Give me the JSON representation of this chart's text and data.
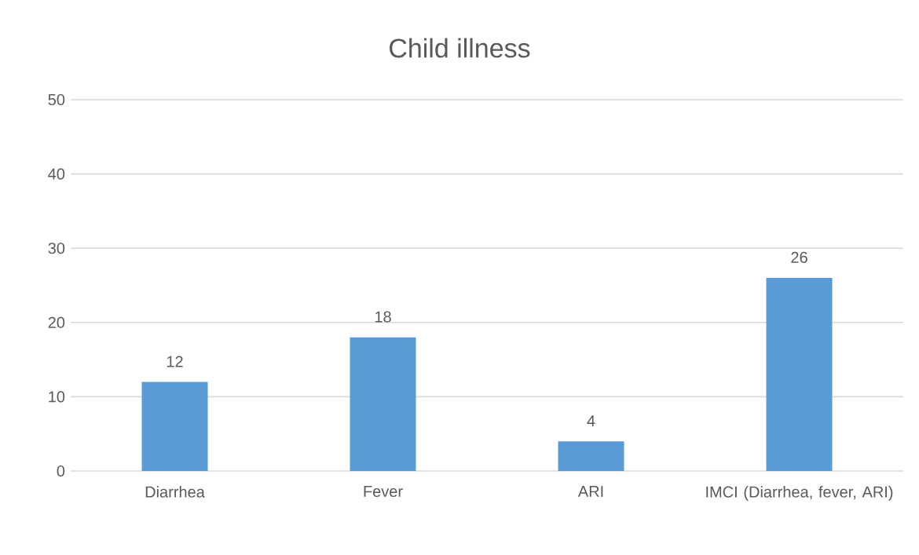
{
  "chart_data": {
    "type": "bar",
    "title": "Child illness",
    "categories": [
      "Diarrhea",
      "Fever",
      "ARI",
      "IMCI (Diarrhea, fever, ARI)"
    ],
    "values": [
      12,
      18,
      4,
      26
    ],
    "color": "#5b9bd5",
    "ylim": [
      0,
      50
    ],
    "yticks": [
      0,
      10,
      20,
      30,
      40,
      50
    ],
    "grid": "y",
    "data_labels": true
  }
}
